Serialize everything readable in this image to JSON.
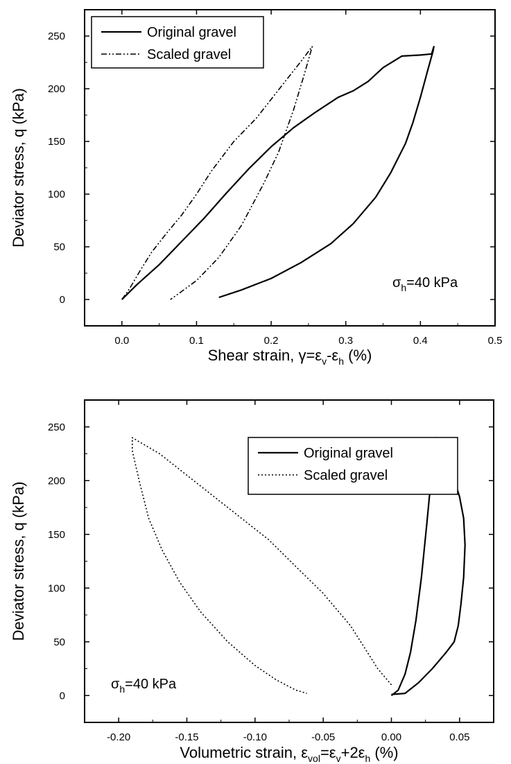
{
  "chart_data": [
    {
      "type": "line",
      "xlabel": "Shear strain, γ=ε",
      "xlabel_parts": [
        "Shear strain, γ=ε",
        "v",
        "-ε",
        "h",
        " (%)"
      ],
      "ylabel": "Deviator stress, q (kPa)",
      "xlim": [
        -0.05,
        0.5
      ],
      "ylim": [
        -25,
        275
      ],
      "xticks": [
        "0.0",
        "0.1",
        "0.2",
        "0.3",
        "0.4",
        "0.5"
      ],
      "yticks": [
        "0",
        "50",
        "100",
        "150",
        "200",
        "250"
      ],
      "annotation": {
        "main": "σ",
        "sub": "h",
        "rest": "=40 kPa"
      },
      "legend_position": "top-left",
      "series": [
        {
          "name": "Original gravel",
          "style": "solid",
          "points": [
            [
              0.0,
              0
            ],
            [
              0.02,
              14
            ],
            [
              0.05,
              33
            ],
            [
              0.08,
              55
            ],
            [
              0.11,
              77
            ],
            [
              0.14,
              101
            ],
            [
              0.17,
              124
            ],
            [
              0.2,
              145
            ],
            [
              0.23,
              163
            ],
            [
              0.26,
              178
            ],
            [
              0.29,
              192
            ],
            [
              0.31,
              198
            ],
            [
              0.33,
              207
            ],
            [
              0.35,
              220
            ],
            [
              0.375,
              231
            ],
            [
              0.4,
              232
            ],
            [
              0.415,
              233
            ],
            [
              0.418,
              240
            ],
            [
              0.417,
              236
            ],
            [
              0.41,
              218
            ],
            [
              0.4,
              192
            ],
            [
              0.39,
              168
            ],
            [
              0.38,
              148
            ],
            [
              0.36,
              120
            ],
            [
              0.34,
              97
            ],
            [
              0.31,
              72
            ],
            [
              0.28,
              53
            ],
            [
              0.24,
              35
            ],
            [
              0.2,
              20
            ],
            [
              0.16,
              9
            ],
            [
              0.13,
              2
            ]
          ]
        },
        {
          "name": "Scaled gravel",
          "style": "dash-dot-dot",
          "points": [
            [
              0.0,
              0
            ],
            [
              0.01,
              10
            ],
            [
              0.025,
              28
            ],
            [
              0.04,
              45
            ],
            [
              0.06,
              63
            ],
            [
              0.08,
              80
            ],
            [
              0.1,
              100
            ],
            [
              0.12,
              122
            ],
            [
              0.15,
              150
            ],
            [
              0.18,
              172
            ],
            [
              0.2,
              190
            ],
            [
              0.22,
              208
            ],
            [
              0.24,
              226
            ],
            [
              0.255,
              240
            ],
            [
              0.245,
              215
            ],
            [
              0.23,
              180
            ],
            [
              0.21,
              140
            ],
            [
              0.19,
              110
            ],
            [
              0.16,
              70
            ],
            [
              0.13,
              40
            ],
            [
              0.1,
              18
            ],
            [
              0.075,
              5
            ],
            [
              0.065,
              0
            ]
          ]
        }
      ]
    },
    {
      "type": "line",
      "xlabel": "Volumetric strain, ε",
      "xlabel_parts": [
        "Volumetric strain, ε",
        "vol",
        "=ε",
        "v",
        "+2ε",
        "h",
        " (%)"
      ],
      "ylabel": "Deviator stress, q (kPa)",
      "xlim": [
        -0.225,
        0.075
      ],
      "ylim": [
        -25,
        275
      ],
      "xticks": [
        "-0.20",
        "-0.15",
        "-0.10",
        "-0.05",
        "0.00",
        "0.05"
      ],
      "yticks": [
        "0",
        "50",
        "100",
        "150",
        "200",
        "250"
      ],
      "annotation": {
        "main": "σ",
        "sub": "h",
        "rest": "=40 kPa"
      },
      "legend_position": "top-right",
      "series": [
        {
          "name": "Original gravel",
          "style": "solid",
          "points": [
            [
              0.0,
              0
            ],
            [
              0.005,
              5
            ],
            [
              0.01,
              20
            ],
            [
              0.014,
              40
            ],
            [
              0.018,
              70
            ],
            [
              0.022,
              110
            ],
            [
              0.026,
              160
            ],
            [
              0.029,
              200
            ],
            [
              0.031,
              230
            ],
            [
              0.033,
              240
            ],
            [
              0.036,
              232
            ],
            [
              0.04,
              225
            ],
            [
              0.045,
              205
            ],
            [
              0.05,
              185
            ],
            [
              0.053,
              165
            ],
            [
              0.054,
              140
            ],
            [
              0.053,
              110
            ],
            [
              0.051,
              85
            ],
            [
              0.049,
              65
            ],
            [
              0.046,
              50
            ],
            [
              0.04,
              40
            ],
            [
              0.03,
              25
            ],
            [
              0.02,
              12
            ],
            [
              0.01,
              2
            ],
            [
              0.0,
              1
            ]
          ]
        },
        {
          "name": "Scaled gravel",
          "style": "dotted",
          "points": [
            [
              0.0,
              10
            ],
            [
              -0.01,
              25
            ],
            [
              -0.02,
              45
            ],
            [
              -0.03,
              65
            ],
            [
              -0.05,
              95
            ],
            [
              -0.07,
              120
            ],
            [
              -0.09,
              145
            ],
            [
              -0.11,
              165
            ],
            [
              -0.13,
              185
            ],
            [
              -0.15,
              205
            ],
            [
              -0.17,
              225
            ],
            [
              -0.19,
              240
            ],
            [
              -0.19,
              228
            ],
            [
              -0.185,
              200
            ],
            [
              -0.178,
              165
            ],
            [
              -0.168,
              135
            ],
            [
              -0.155,
              105
            ],
            [
              -0.14,
              78
            ],
            [
              -0.12,
              50
            ],
            [
              -0.1,
              28
            ],
            [
              -0.085,
              15
            ],
            [
              -0.07,
              5
            ],
            [
              -0.062,
              2
            ]
          ]
        }
      ]
    }
  ]
}
